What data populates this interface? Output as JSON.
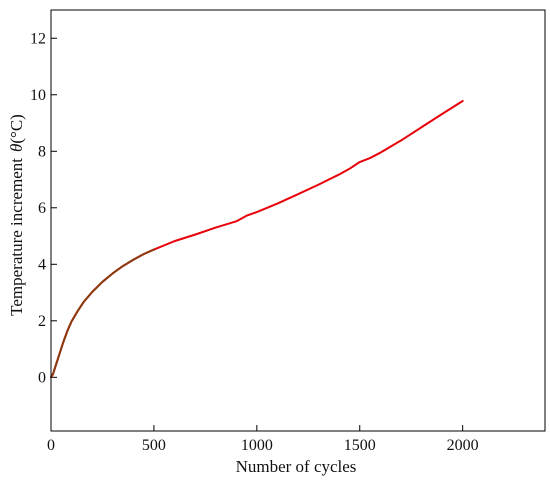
{
  "chart_data": {
    "type": "line",
    "title": "",
    "xlabel": "Number of cycles",
    "ylabel_text": "Temperature increment",
    "ylabel_symbol": "θ",
    "ylabel_unit": "(°C)",
    "xlim": [
      0,
      2400
    ],
    "ylim": [
      -1.9,
      13
    ],
    "x_ticks": [
      0,
      500,
      1000,
      1500,
      2000
    ],
    "y_ticks": [
      0,
      2,
      4,
      6,
      8,
      10,
      12
    ],
    "grid": false,
    "legend": "none",
    "series": [
      {
        "color": "#e8000b",
        "early_color": "#8b3a0f",
        "x": [
          0,
          10,
          20,
          40,
          60,
          80,
          100,
          130,
          160,
          200,
          250,
          300,
          350,
          400,
          450,
          500,
          600,
          700,
          800,
          900,
          950,
          1000,
          1100,
          1200,
          1300,
          1400,
          1450,
          1500,
          1550,
          1600,
          1700,
          1800,
          1900,
          2000
        ],
        "y": [
          0,
          0.12,
          0.35,
          0.8,
          1.25,
          1.65,
          1.98,
          2.35,
          2.68,
          3.02,
          3.38,
          3.68,
          3.94,
          4.16,
          4.36,
          4.52,
          4.82,
          5.05,
          5.3,
          5.52,
          5.72,
          5.85,
          6.15,
          6.48,
          6.82,
          7.18,
          7.38,
          7.62,
          7.76,
          7.95,
          8.38,
          8.85,
          9.32,
          9.78
        ]
      }
    ]
  }
}
